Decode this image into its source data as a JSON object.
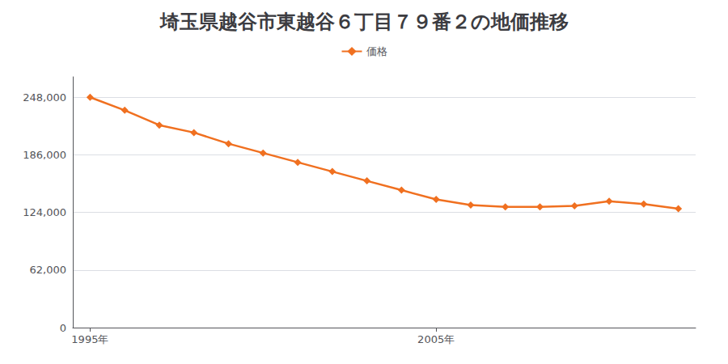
{
  "chart_data": {
    "type": "line",
    "title": "埼玉県越谷市東越谷６丁目７９番２の地価推移",
    "series": [
      {
        "name": "価格",
        "color": "#f07020",
        "marker": "diamond",
        "values": [
          248000,
          234000,
          218000,
          210000,
          198000,
          188000,
          178000,
          168000,
          158000,
          148000,
          138000,
          132000,
          130000,
          130000,
          131000,
          136000,
          133000,
          128000
        ]
      }
    ],
    "x": [
      1995,
      1996,
      1997,
      1998,
      1999,
      2000,
      2001,
      2002,
      2003,
      2004,
      2005,
      2006,
      2007,
      2008,
      2009,
      2010,
      2011,
      2012
    ],
    "xlim": [
      1994.5,
      2012.5
    ],
    "xticks": [
      {
        "value": 1995,
        "label": "1995年"
      },
      {
        "value": 2005,
        "label": "2005年"
      }
    ],
    "ylim": [
      0,
      270000
    ],
    "yticks": [
      0,
      {
        "value": 62000,
        "label": "62,000"
      },
      {
        "value": 124000,
        "label": "124,000"
      },
      {
        "value": 186000,
        "label": "186,000"
      },
      {
        "value": 248000,
        "label": "248,000"
      }
    ],
    "grid": true,
    "legend": "top"
  }
}
